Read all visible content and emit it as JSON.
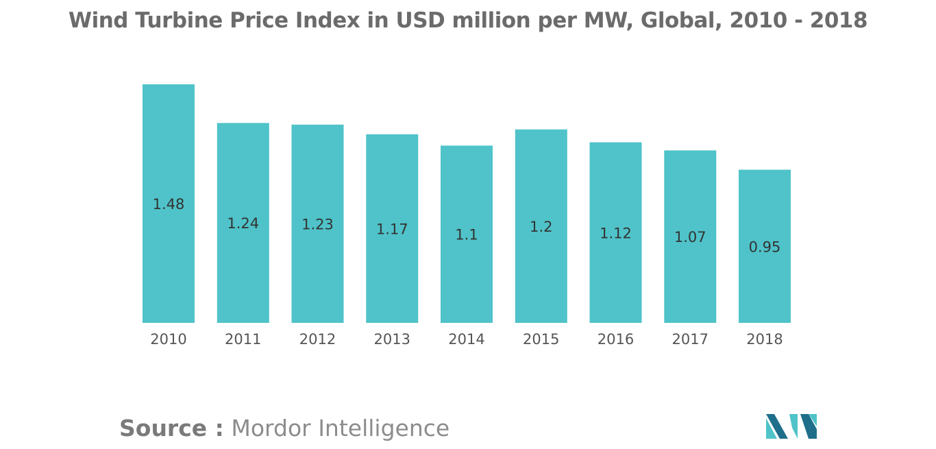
{
  "title": "Wind Turbine Price Index in USD million per MW, Global, 2010 - 2018",
  "source": {
    "label": "Source :",
    "value": "Mordor Intelligence"
  },
  "logo": {
    "icon": "mordor-intelligence-logo"
  },
  "colors": {
    "bar": "#4fc3c9",
    "text": "#333333",
    "axis_text": "#555555",
    "logo_dark": "#1f6f8b",
    "logo_light": "#4fc3c9"
  },
  "chart_data": {
    "type": "bar",
    "title": "Wind Turbine Price Index in USD million per MW, Global, 2010 - 2018",
    "categories": [
      "2010",
      "2011",
      "2012",
      "2013",
      "2014",
      "2015",
      "2016",
      "2017",
      "2018"
    ],
    "values": [
      1.48,
      1.24,
      1.23,
      1.17,
      1.1,
      1.2,
      1.12,
      1.07,
      0.95
    ],
    "data_labels": [
      "1.48",
      "1.24",
      "1.23",
      "1.17",
      "1.1",
      "1.2",
      "1.12",
      "1.07",
      "0.95"
    ],
    "xlabel": "",
    "ylabel": "",
    "ylim": [
      0,
      1.48
    ],
    "grid": false,
    "legend": "none"
  }
}
